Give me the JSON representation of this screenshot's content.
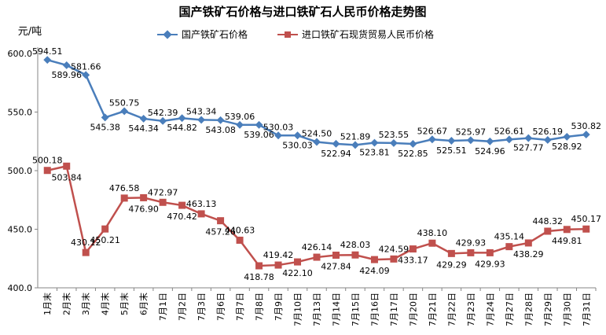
{
  "chart_data": {
    "type": "line",
    "title": "国产铁矿石价格与进口铁矿石人民币价格走势图",
    "unit_label": "元/吨",
    "ylim": [
      400,
      600
    ],
    "yticks": [
      "400.0",
      "450.0",
      "500.0",
      "550.0",
      "600.0"
    ],
    "grid": false,
    "legend_position": "top",
    "categories": [
      "1月末",
      "2月末",
      "3月末",
      "4月末",
      "5月末",
      "6月末",
      "7月1日",
      "7月2日",
      "7月3日",
      "7月6日",
      "7月7日",
      "7月8日",
      "7月9日",
      "7月10日",
      "7月13日",
      "7月14日",
      "7月15日",
      "7月16日",
      "7月17日",
      "7月20日",
      "7月21日",
      "7月22日",
      "7月23日",
      "7月24日",
      "7月27日",
      "7月28日",
      "7月29日",
      "7月30日",
      "7月31日"
    ],
    "series": [
      {
        "name": "国产铁矿石价格",
        "color": "#4a7ebb",
        "marker": "diamond",
        "values": [
          594.51,
          589.96,
          581.66,
          545.38,
          550.75,
          544.34,
          542.39,
          544.82,
          543.34,
          543.08,
          539.06,
          539.06,
          530.03,
          530.03,
          524.5,
          522.94,
          521.89,
          523.81,
          523.55,
          522.85,
          526.67,
          525.51,
          525.97,
          524.96,
          526.61,
          527.77,
          526.19,
          528.92,
          530.82
        ],
        "labels": [
          "594.51",
          "589.96",
          "581.66",
          "545.38",
          "550.75",
          "544.34",
          "542.39",
          "544.82",
          "543.34",
          "543.08",
          "539.06",
          "539.06",
          "530.03",
          "530.03",
          "524.50",
          "522.94",
          "521.89",
          "523.81",
          "523.55",
          "522.85",
          "526.67",
          "525.51",
          "525.97",
          "524.96",
          "526.61",
          "527.77",
          "526.19",
          "528.92",
          "530.82"
        ]
      },
      {
        "name": "进口铁矿石现货贸易人民币价格",
        "color": "#c0504d",
        "marker": "square",
        "values": [
          500.18,
          503.84,
          430.12,
          450.21,
          476.58,
          476.9,
          472.97,
          470.42,
          463.13,
          457.26,
          440.63,
          418.78,
          419.42,
          422.1,
          426.14,
          427.84,
          428.03,
          424.09,
          424.59,
          433.17,
          438.1,
          429.29,
          429.93,
          429.93,
          435.14,
          438.29,
          448.32,
          449.81,
          450.17
        ],
        "labels": [
          "500.18",
          "503.84",
          "430.12",
          "450.21",
          "476.58",
          "476.90",
          "472.97",
          "470.42",
          "463.13",
          "457.26",
          "440.63",
          "418.78",
          "419.42",
          "422.10",
          "426.14",
          "427.84",
          "428.03",
          "424.09",
          "424.59",
          "433.17",
          "438.10",
          "429.29",
          "429.93",
          "429.93",
          "435.14",
          "438.29",
          "448.32",
          "449.81",
          "450.17"
        ]
      }
    ]
  }
}
